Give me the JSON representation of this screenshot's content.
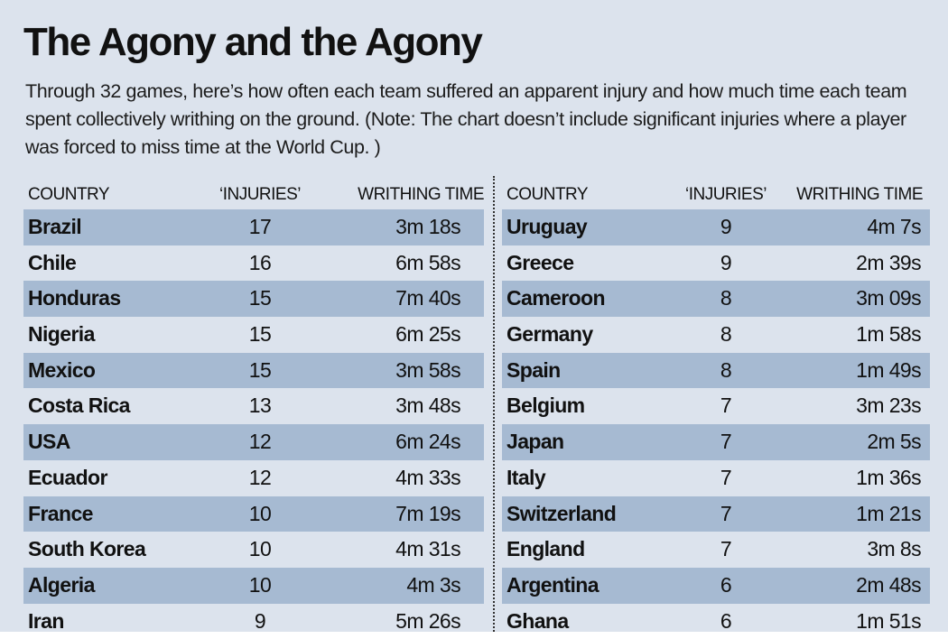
{
  "title": "The Agony and the Agony",
  "subtitle": "Through 32 games, here’s how often each team suffered an apparent injury and how much time each team spent collectively writhing on the ground. (Note: The chart doesn’t include significant injuries where a player was forced to miss time at the World Cup. )",
  "columns": [
    "COUNTRY",
    "‘INJURIES’",
    "WRITHING TIME"
  ],
  "colors": {
    "background": "#dce3ed",
    "row_shade": "#a6bad2",
    "text": "#111111"
  },
  "chart_data": {
    "type": "table",
    "title": "The Agony and the Agony",
    "columns": [
      "COUNTRY",
      "‘INJURIES’",
      "WRITHING TIME"
    ],
    "left_rows": [
      {
        "country": "Brazil",
        "injuries": "17",
        "time": "3m 18s"
      },
      {
        "country": "Chile",
        "injuries": "16",
        "time": "6m 58s"
      },
      {
        "country": "Honduras",
        "injuries": "15",
        "time": "7m 40s"
      },
      {
        "country": "Nigeria",
        "injuries": "15",
        "time": "6m 25s"
      },
      {
        "country": "Mexico",
        "injuries": "15",
        "time": "3m 58s"
      },
      {
        "country": "Costa Rica",
        "injuries": "13",
        "time": "3m 48s"
      },
      {
        "country": "USA",
        "injuries": "12",
        "time": "6m 24s"
      },
      {
        "country": "Ecuador",
        "injuries": "12",
        "time": "4m 33s"
      },
      {
        "country": "France",
        "injuries": "10",
        "time": "7m 19s"
      },
      {
        "country": "South Korea",
        "injuries": "10",
        "time": "4m 31s"
      },
      {
        "country": "Algeria",
        "injuries": "10",
        "time": "4m 3s"
      },
      {
        "country": "Iran",
        "injuries": "9",
        "time": "5m 26s"
      }
    ],
    "right_rows": [
      {
        "country": "Uruguay",
        "injuries": "9",
        "time": "4m 7s"
      },
      {
        "country": "Greece",
        "injuries": "9",
        "time": "2m 39s"
      },
      {
        "country": "Cameroon",
        "injuries": "8",
        "time": "3m 09s"
      },
      {
        "country": "Germany",
        "injuries": "8",
        "time": "1m 58s"
      },
      {
        "country": "Spain",
        "injuries": "8",
        "time": "1m 49s"
      },
      {
        "country": "Belgium",
        "injuries": "7",
        "time": "3m 23s"
      },
      {
        "country": "Japan",
        "injuries": "7",
        "time": "2m 5s"
      },
      {
        "country": "Italy",
        "injuries": "7",
        "time": "1m 36s"
      },
      {
        "country": "Switzerland",
        "injuries": "7",
        "time": "1m 21s"
      },
      {
        "country": "England",
        "injuries": "7",
        "time": "3m 8s"
      },
      {
        "country": "Argentina",
        "injuries": "6",
        "time": "2m 48s"
      },
      {
        "country": "Ghana",
        "injuries": "6",
        "time": "1m 51s"
      }
    ]
  }
}
